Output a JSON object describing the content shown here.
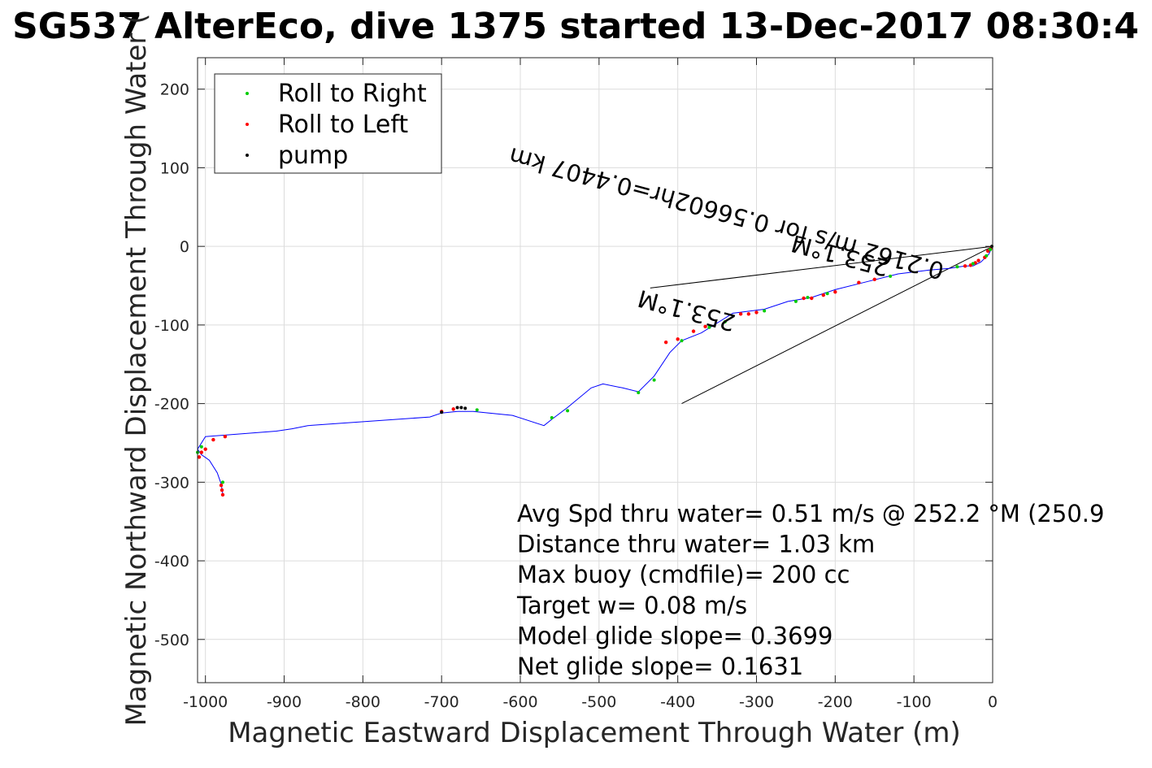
{
  "chart_data": {
    "type": "line",
    "title": "SG537 AlterEco, dive 1375 started 13-Dec-2017 08:30:4",
    "xlabel": "Magnetic Eastward Displacement Through Water (m)",
    "ylabel": "Magnetic Northward Displacement Through Water (",
    "xlim": [
      -1010,
      0
    ],
    "ylim": [
      -555,
      240
    ],
    "x_ticks": [
      -1000,
      -900,
      -800,
      -700,
      -600,
      -500,
      -400,
      -300,
      -200,
      -100,
      0
    ],
    "x_tick_labels": [
      "-1000",
      "-900",
      "-800",
      "-700",
      "-600",
      "-500",
      "-400",
      "-300",
      "-200",
      "-100",
      "0"
    ],
    "y_ticks": [
      200,
      100,
      0,
      -100,
      -200,
      -300,
      -400,
      -500
    ],
    "y_tick_labels": [
      "200",
      "100",
      "0",
      "-100",
      "-200",
      "-300",
      "-400",
      "-500"
    ],
    "grid": true,
    "legend": {
      "placement": "top-left",
      "entries": [
        {
          "label": "Roll to Right",
          "color": "#00cc00"
        },
        {
          "label": "Roll to Left",
          "color": "#ff0000"
        },
        {
          "label": "pump",
          "color": "#000000"
        }
      ]
    },
    "track": {
      "name": "track",
      "color": "#0000ff",
      "x": [
        0,
        -5,
        -15,
        -25,
        -35,
        -55,
        -80,
        -120,
        -160,
        -200,
        -230,
        -260,
        -290,
        -330,
        -370,
        -395,
        -410,
        -430,
        -450,
        -470,
        -495,
        -510,
        -540,
        -560,
        -570,
        -610,
        -660,
        -680,
        -700,
        -715,
        -870,
        -890,
        -910,
        -1000,
        -1010,
        -1005,
        -995,
        -985,
        -980,
        -978
      ],
      "y": [
        0,
        -10,
        -20,
        -25,
        -25,
        -28,
        -30,
        -35,
        -45,
        -55,
        -65,
        -70,
        -80,
        -85,
        -110,
        -120,
        -135,
        -165,
        -185,
        -180,
        -175,
        -180,
        -205,
        -220,
        -228,
        -215,
        -210,
        -210,
        -212,
        -217,
        -228,
        -232,
        -235,
        -242,
        -258,
        -265,
        -272,
        -288,
        -302,
        -315
      ]
    },
    "roll_right_points": {
      "x": [
        -3,
        -8,
        -25,
        -45,
        -130,
        -210,
        -235,
        -250,
        -290,
        -340,
        -360,
        -395,
        -430,
        -450,
        -540,
        -560,
        -655,
        -1005,
        -1010,
        -978
      ],
      "y": [
        -4,
        -12,
        -22,
        -26,
        -38,
        -60,
        -65,
        -70,
        -82,
        -96,
        -103,
        -120,
        -170,
        -186,
        -209,
        -218,
        -208,
        -255,
        -262,
        -300
      ]
    },
    "roll_left_points": {
      "x": [
        -2,
        -6,
        -10,
        -18,
        -22,
        -28,
        -35,
        -150,
        -170,
        -200,
        -215,
        -230,
        -240,
        -300,
        -310,
        -320,
        -365,
        -380,
        -400,
        -415,
        -685,
        -700,
        -975,
        -990,
        -1000,
        -1005,
        -1008,
        -980,
        -979,
        -978
      ],
      "y": [
        -2,
        -6,
        -14,
        -18,
        -21,
        -24,
        -25,
        -42,
        -46,
        -58,
        -62,
        -66,
        -66,
        -84,
        -86,
        -86,
        -102,
        -108,
        -118,
        -122,
        -207,
        -210,
        -242,
        -246,
        -258,
        -262,
        -268,
        -304,
        -310,
        -316
      ]
    },
    "pump_points": {
      "x": [
        -1,
        -680,
        -675,
        -670,
        -700
      ],
      "y": [
        0,
        -205,
        -205,
        -206,
        -211
      ]
    },
    "reference_lines": [
      {
        "x": [
          0,
          -435
        ],
        "y": [
          0,
          -53
        ]
      },
      {
        "x": [
          0,
          -395
        ],
        "y": [
          0,
          -200
        ]
      }
    ],
    "segment_labels": [
      {
        "text": "253.1°M",
        "x": -130,
        "y": -18,
        "rotation_deg": 195
      },
      {
        "text": "0.2162 m/s for 0.56602hr=0.4407 km",
        "x": -60,
        "y": -22,
        "rotation_deg": 195
      },
      {
        "text": "253.1°M",
        "x": -325,
        "y": -88,
        "rotation_deg": 195
      }
    ],
    "annotations": [
      "Avg Spd thru water=  0.51 m/s @ 252.2 °M (250.9",
      "Distance thru water=  1.03 km",
      "Max buoy (cmdfile)= 200 cc",
      "Target w= 0.08 m/s",
      "Model glide slope= 0.3699",
      "Net glide slope= 0.1631"
    ]
  }
}
